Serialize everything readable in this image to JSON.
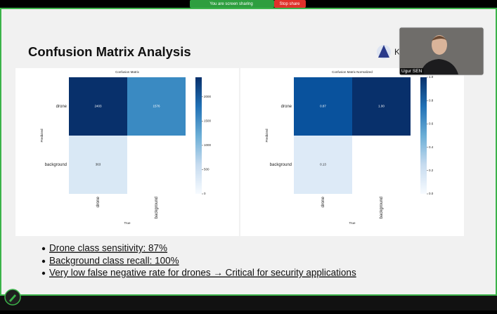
{
  "banner": {
    "sharing": "You are screen sharing",
    "stop": "Stop share"
  },
  "slide": {
    "title": "Confusion Matrix Analysis",
    "bullets": [
      "Drone class sensitivity: 87%",
      "Background class recall: 100%",
      "Very low false negative rate for drones → Critical for security applications"
    ]
  },
  "participant": {
    "name": "Ugur SEN"
  },
  "chart_data": [
    {
      "type": "heatmap",
      "title": "Confusion Matrix",
      "x_label": "True",
      "y_label": "Predicted",
      "x_categories": [
        "drone",
        "background"
      ],
      "y_categories": [
        "drone",
        "background"
      ],
      "values": [
        [
          2403,
          1576
        ],
        [
          363,
          null
        ]
      ],
      "value_labels": [
        [
          "2403",
          "1576"
        ],
        [
          "363",
          null
        ]
      ],
      "cmap": "Blues",
      "colorbar_lim": [
        0,
        2403
      ],
      "colorbar_ticks": [
        0,
        500,
        1000,
        1500,
        2000
      ]
    },
    {
      "type": "heatmap",
      "title": "Confusion Matrix Normalized",
      "x_label": "True",
      "y_label": "Predicted",
      "x_categories": [
        "drone",
        "background"
      ],
      "y_categories": [
        "drone",
        "background"
      ],
      "values": [
        [
          0.87,
          1
        ],
        [
          0.13,
          null
        ]
      ],
      "value_labels": [
        [
          "0.87",
          "1.00"
        ],
        [
          "0.13",
          null
        ]
      ],
      "cmap": "Blues",
      "colorbar_lim": [
        0,
        1
      ],
      "colorbar_ticks": [
        {
          "value": 0,
          "label": "0.0"
        },
        {
          "value": 0.2,
          "label": "0.2"
        },
        {
          "value": 0.4,
          "label": "0.4"
        },
        {
          "value": 0.6,
          "label": "0.6"
        },
        {
          "value": 0.8,
          "label": "0.8"
        },
        {
          "value": 1,
          "label": "1.0"
        }
      ]
    }
  ]
}
